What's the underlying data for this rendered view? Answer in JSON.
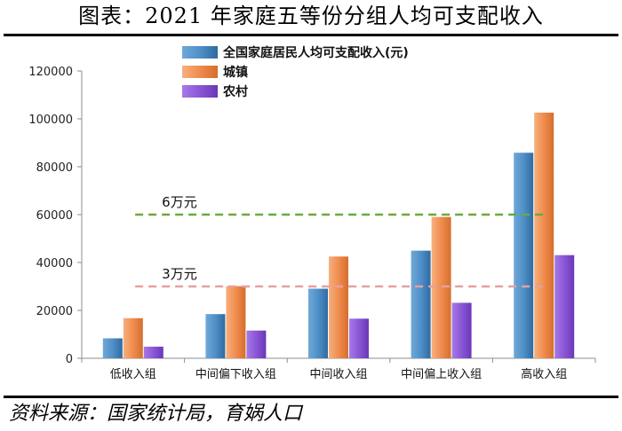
{
  "header": {
    "title": "图表：2021 年家庭五等份分组人均可支配收入"
  },
  "footer": {
    "source": "资料来源：国家统计局，育娲人口"
  },
  "chart_data": {
    "type": "bar",
    "title": "图表：2021 年家庭五等份分组人均可支配收入",
    "categories": [
      "低收入组",
      "中间偏下收入组",
      "中间收入组",
      "中间偏上收入组",
      "高收入组"
    ],
    "series": [
      {
        "name": "全国家庭居民人均可支配收入(元)",
        "values": [
          8333,
          18446,
          29053,
          44949,
          85836
        ],
        "color": "#4f90c8"
      },
      {
        "name": "城镇",
        "values": [
          16746,
          30133,
          42498,
          59005,
          102596
        ],
        "color": "#f08c4e"
      },
      {
        "name": "农村",
        "values": [
          4856,
          11586,
          16546,
          23167,
          43082
        ],
        "color": "#8a56d6"
      }
    ],
    "ylim": [
      0,
      120000
    ],
    "yticks": [
      0,
      20000,
      40000,
      60000,
      80000,
      100000,
      120000
    ],
    "reference_lines": [
      {
        "label": "6万元",
        "value": 60000,
        "color": "#6aaa3a"
      },
      {
        "label": "3万元",
        "value": 30000,
        "color": "#e6a0a0"
      }
    ],
    "legend_position": "top",
    "grid": false
  }
}
